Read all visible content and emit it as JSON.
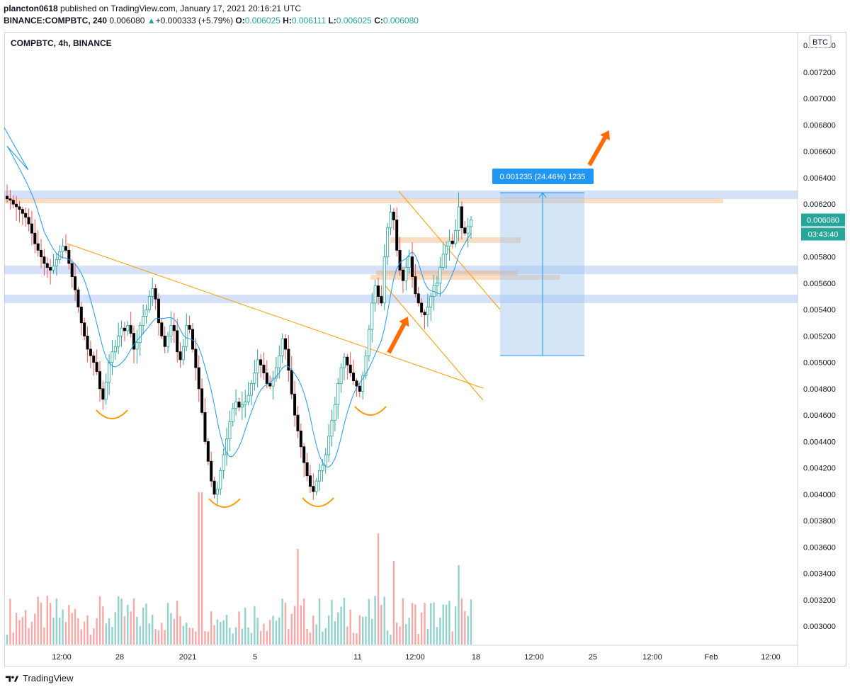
{
  "header": {
    "author": "plancton0618",
    "published_text": "published on TradingView.com, January 17, 2021 20:16:21 UTC",
    "symbol_line": "BINANCE:COMPBTC, 240",
    "last": "0.006080",
    "change": "+0.000333 (+5.79%)",
    "o_label": "O:",
    "o_value": "0.006025",
    "h_label": "H:",
    "h_value": "0.006111",
    "l_label": "L:",
    "l_value": "0.006025",
    "c_label": "C:",
    "c_value": "0.006080"
  },
  "footer": {
    "brand": "TradingView"
  },
  "chart_data": {
    "type": "candlestick",
    "title": "COMPBTC, 4h, BINANCE",
    "currency_badge": "BTC",
    "price_axis_labels": [
      "0.007200",
      "0.007000",
      "0.006800",
      "0.006600",
      "0.006400",
      "0.006200",
      "0.005800",
      "0.005600",
      "0.005400",
      "0.005200",
      "0.005000",
      "0.004800",
      "0.004600",
      "0.004400",
      "0.004200",
      "0.004000",
      "0.003800",
      "0.003600",
      "0.003400",
      "0.003200",
      "0.003000"
    ],
    "price_axis_top_partial": "0.007400",
    "time_axis_labels": [
      "12:00",
      "28",
      "2021",
      "5",
      "11",
      "12:00",
      "18",
      "12:00",
      "25",
      "12:00",
      "Feb",
      "12:00"
    ],
    "last_price_tag": "0.006080",
    "countdown_tag": "03:43:40",
    "measure_label": "0.001235 (24.46%) 1235",
    "close_path": [
      0.00624,
      0.00623,
      0.0062,
      0.00618,
      0.00616,
      0.00613,
      0.0061,
      0.00605,
      0.00598,
      0.0059,
      0.00585,
      0.0058,
      0.00575,
      0.00572,
      0.0057,
      0.00573,
      0.00578,
      0.00584,
      0.00588,
      0.00585,
      0.00575,
      0.00565,
      0.00555,
      0.00542,
      0.0053,
      0.0052,
      0.0051,
      0.00505,
      0.005,
      0.00493,
      0.0048,
      0.00472,
      0.00485,
      0.005,
      0.00508,
      0.00512,
      0.0052,
      0.00526,
      0.00524,
      0.00528,
      0.00522,
      0.0051,
      0.00515,
      0.00528,
      0.00535,
      0.0054,
      0.0055,
      0.00556,
      0.00548,
      0.0053,
      0.0052,
      0.00512,
      0.0052,
      0.00528,
      0.00524,
      0.00508,
      0.00502,
      0.00512,
      0.00528,
      0.00525,
      0.0051,
      0.00496,
      0.0048,
      0.00462,
      0.0044,
      0.00425,
      0.0041,
      0.004,
      0.00404,
      0.00418,
      0.0043,
      0.00442,
      0.00455,
      0.00465,
      0.0047,
      0.00466,
      0.00468,
      0.0047,
      0.00475,
      0.00484,
      0.00492,
      0.00502,
      0.00498,
      0.00492,
      0.00484,
      0.00482,
      0.00488,
      0.00496,
      0.00505,
      0.00518,
      0.0051,
      0.00494,
      0.00476,
      0.0046,
      0.00448,
      0.00436,
      0.00424,
      0.00414,
      0.00406,
      0.00402,
      0.0041,
      0.00418,
      0.00422,
      0.0043,
      0.00444,
      0.00456,
      0.00468,
      0.00484,
      0.00496,
      0.00504,
      0.00498,
      0.00492,
      0.00486,
      0.00482,
      0.00478,
      0.0049,
      0.00505,
      0.00525,
      0.00545,
      0.00558,
      0.0055,
      0.00545,
      0.0058,
      0.00602,
      0.00614,
      0.00608,
      0.00585,
      0.0057,
      0.00562,
      0.00572,
      0.0058,
      0.00565,
      0.00552,
      0.00545,
      0.00538,
      0.00536,
      0.00542,
      0.0055,
      0.00558,
      0.0056,
      0.00572,
      0.00582,
      0.00588,
      0.00592,
      0.0059,
      0.006,
      0.00618,
      0.00602,
      0.00598,
      0.00603,
      0.00608
    ]
  }
}
